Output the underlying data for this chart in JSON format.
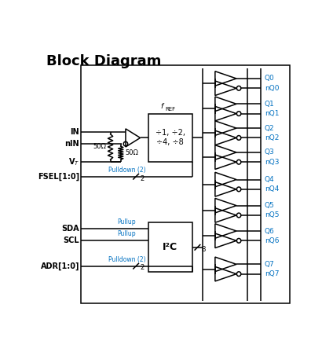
{
  "title": "Block Diagram",
  "title_fontsize": 13,
  "bg_color": "#ffffff",
  "line_color": "#000000",
  "text_color_blue": "#0070C0",
  "text_color_black": "#000000",
  "figsize": [
    4.24,
    4.48
  ],
  "dpi": 100,
  "div_text1": "÷1, ÷2,",
  "div_text2": "÷4, ÷8",
  "i2c_text": "I²C",
  "pulldown2_label1": "Pulldown (2)",
  "pullup_label1": "Pullup",
  "pullup_label2": "Pullup",
  "pulldown2_label2": "Pulldown (2)",
  "slash2_1": "2",
  "slash8": "8",
  "slash2_2": "2",
  "in_label": "IN",
  "nin_label": "nIN",
  "vt_label": "V$_T$",
  "fsel_label": "FSEL[1:0]",
  "sda_label": "SDA",
  "scl_label": "SCL",
  "adr_label": "ADR[1:0]",
  "r50_left": "50Ω",
  "r50_right": "50Ω"
}
